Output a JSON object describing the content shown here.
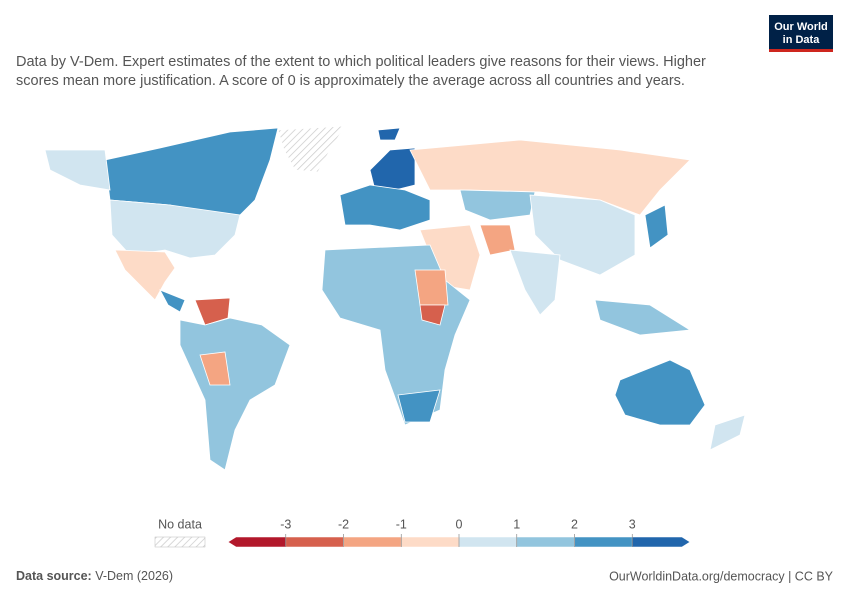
{
  "header": {
    "subtitle": [
      "Data by V-Dem. Expert estimates of the extent to which political leaders give reasons for their views. Higher",
      "scores mean more justification. A score of 0 is approximately the average across all countries and years."
    ],
    "logo": [
      "Our World",
      "in Data"
    ]
  },
  "legend": {
    "no_data": "No data",
    "range": [
      -4,
      4
    ],
    "ticks": [
      -3,
      -2,
      -1,
      0,
      1,
      2,
      3
    ],
    "colors": [
      "#b2182b",
      "#d6604d",
      "#f4a582",
      "#fddbc7",
      "#d1e5f0",
      "#92c5de",
      "#4393c3",
      "#2166ac"
    ]
  },
  "footer": {
    "source_label": "Data source:",
    "source": "V-Dem (2026)",
    "url": "OurWorldinData.org/democracy | CC BY"
  }
}
